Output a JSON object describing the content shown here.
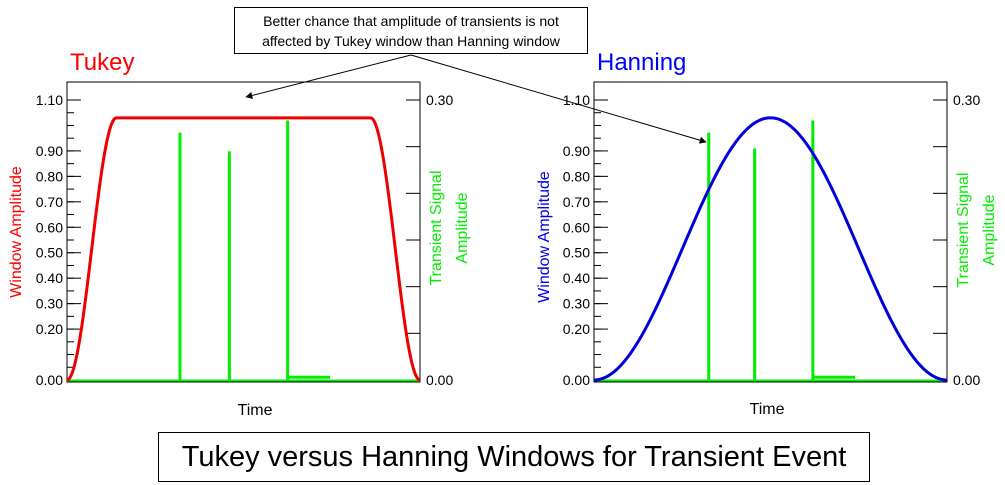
{
  "annotation": {
    "line1": "Better chance that amplitude of transients is not",
    "line2": "affected by Tukey window than Hanning window"
  },
  "caption": "Tukey versus Hanning Windows for Transient Event",
  "chart_data": [
    {
      "type": "line",
      "title": "Tukey",
      "title_color": "#ff0000",
      "xlabel": "Time",
      "ylabel": "Window Amplitude",
      "ylabel_color": "#ff0000",
      "y2label": [
        "Transient Signal",
        "Amplitude"
      ],
      "y2label_color": "#00ee00",
      "y_ticks": [
        "0.00",
        "0.20",
        "0.30",
        "0.40",
        "0.50",
        "0.60",
        "0.70",
        "0.80",
        "0.90",
        "1.10"
      ],
      "y_tick_values": [
        0,
        0.2,
        0.3,
        0.4,
        0.5,
        0.6,
        0.7,
        0.8,
        0.9,
        1.1
      ],
      "ylim": [
        0,
        1.1
      ],
      "y2_ticks": [
        "0.00",
        "0.30"
      ],
      "y2_tick_values": [
        0,
        0.3
      ],
      "y2lim": [
        0,
        0.3
      ],
      "xlim": [
        0,
        1
      ],
      "window": {
        "name": "Tukey",
        "color": "#ee0000",
        "peak": 1.03,
        "taper_fraction": 0.28
      },
      "transients": {
        "color": "#00ee00",
        "spikes": [
          {
            "x": 0.32,
            "value": 0.265
          },
          {
            "x": 0.46,
            "value": 0.245
          },
          {
            "x": 0.625,
            "value": 0.278
          }
        ],
        "tail": {
          "from": 0.625,
          "to": 0.745,
          "value": 0.003
        }
      }
    },
    {
      "type": "line",
      "title": "Hanning",
      "title_color": "#0000ff",
      "xlabel": "Time",
      "ylabel": "Window Amplitude",
      "ylabel_color": "#0000ee",
      "y2label": [
        "Transient Signal",
        "Amplitude"
      ],
      "y2label_color": "#00ee00",
      "y_ticks": [
        "0.00",
        "0.20",
        "0.30",
        "0.40",
        "0.50",
        "0.60",
        "0.70",
        "0.80",
        "0.90",
        "1.10"
      ],
      "y_tick_values": [
        0,
        0.2,
        0.3,
        0.4,
        0.5,
        0.6,
        0.7,
        0.8,
        0.9,
        1.1
      ],
      "ylim": [
        0,
        1.1
      ],
      "y2_ticks": [
        "0.00",
        "0.30"
      ],
      "y2_tick_values": [
        0,
        0.3
      ],
      "y2lim": [
        0,
        0.3
      ],
      "xlim": [
        0,
        1
      ],
      "window": {
        "name": "Hanning",
        "color": "#0000dd",
        "peak": 1.03
      },
      "transients": {
        "color": "#00ee00",
        "spikes": [
          {
            "x": 0.325,
            "value": 0.265
          },
          {
            "x": 0.455,
            "value": 0.248
          },
          {
            "x": 0.62,
            "value": 0.278
          }
        ],
        "tail": {
          "from": 0.62,
          "to": 0.74,
          "value": 0.003
        }
      }
    }
  ]
}
